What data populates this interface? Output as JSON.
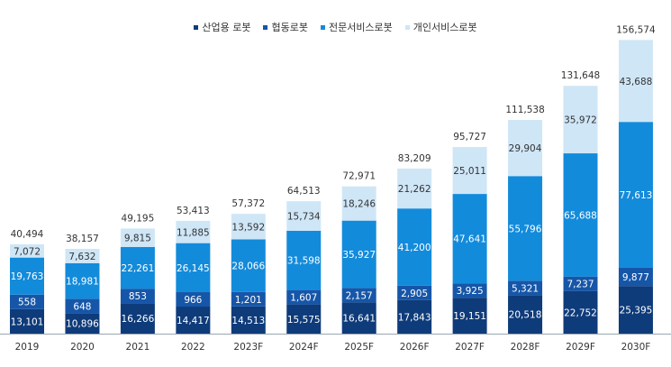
{
  "chart_data": {
    "type": "bar",
    "stacked": true,
    "categories": [
      "2019",
      "2020",
      "2021",
      "2022",
      "2023F",
      "2024F",
      "2025F",
      "2026F",
      "2027F",
      "2028F",
      "2029F",
      "2030F"
    ],
    "series": [
      {
        "name": "산업용 로봇",
        "color": "#0e3b7a",
        "values": [
          13101,
          10896,
          16266,
          14417,
          14513,
          15575,
          16641,
          17843,
          19151,
          20518,
          22752,
          25395
        ]
      },
      {
        "name": "협동로봇",
        "color": "#1656a8",
        "values": [
          558,
          648,
          853,
          966,
          1201,
          1607,
          2157,
          2905,
          3925,
          5321,
          7237,
          9877
        ]
      },
      {
        "name": "전문서비스로봇",
        "color": "#138bdb",
        "values": [
          19763,
          18981,
          22261,
          26145,
          28066,
          31598,
          35927,
          41200,
          47641,
          55796,
          65688,
          77613
        ]
      },
      {
        "name": "개인서비스로봇",
        "color": "#cfe6f7",
        "values": [
          7072,
          7632,
          9815,
          11885,
          13592,
          15734,
          18246,
          21262,
          25011,
          29904,
          35972,
          43688
        ]
      }
    ],
    "totals": [
      40494,
      38157,
      49195,
      53413,
      57372,
      64513,
      72971,
      83209,
      95727,
      111538,
      131648,
      156574
    ],
    "legend_position": "top",
    "grid": false
  }
}
